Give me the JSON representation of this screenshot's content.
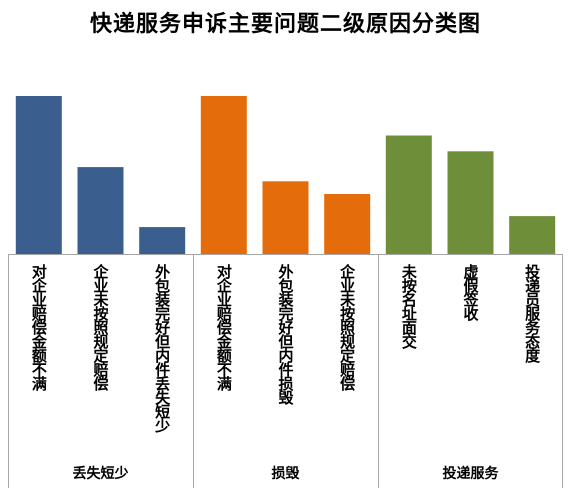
{
  "chart_data": {
    "type": "bar",
    "title": "快递服务申诉主要问题二级原因分类图",
    "xlabel": "",
    "ylabel": "",
    "grid": false,
    "legend": "none",
    "ylim": [
      0,
      100
    ],
    "groups": [
      {
        "name": "丢失短少",
        "color": "#3a5f8f",
        "categories": [
          "对企业赔偿金额不满",
          "企业未按照规定赔偿",
          "外包装完好但内件丢失短少"
        ],
        "values": [
          100,
          55,
          17
        ]
      },
      {
        "name": "损毁",
        "color": "#e46c0a",
        "categories": [
          "对企业赔偿金额不满",
          "外包装完好但内件损毁",
          "企业未按照规定赔偿"
        ],
        "values": [
          100,
          46,
          38
        ]
      },
      {
        "name": "投递服务",
        "color": "#6f8e3a",
        "categories": [
          "未按名址面交",
          "虚假签收",
          "投递员服务态度"
        ],
        "values": [
          75,
          65,
          24
        ]
      }
    ]
  }
}
